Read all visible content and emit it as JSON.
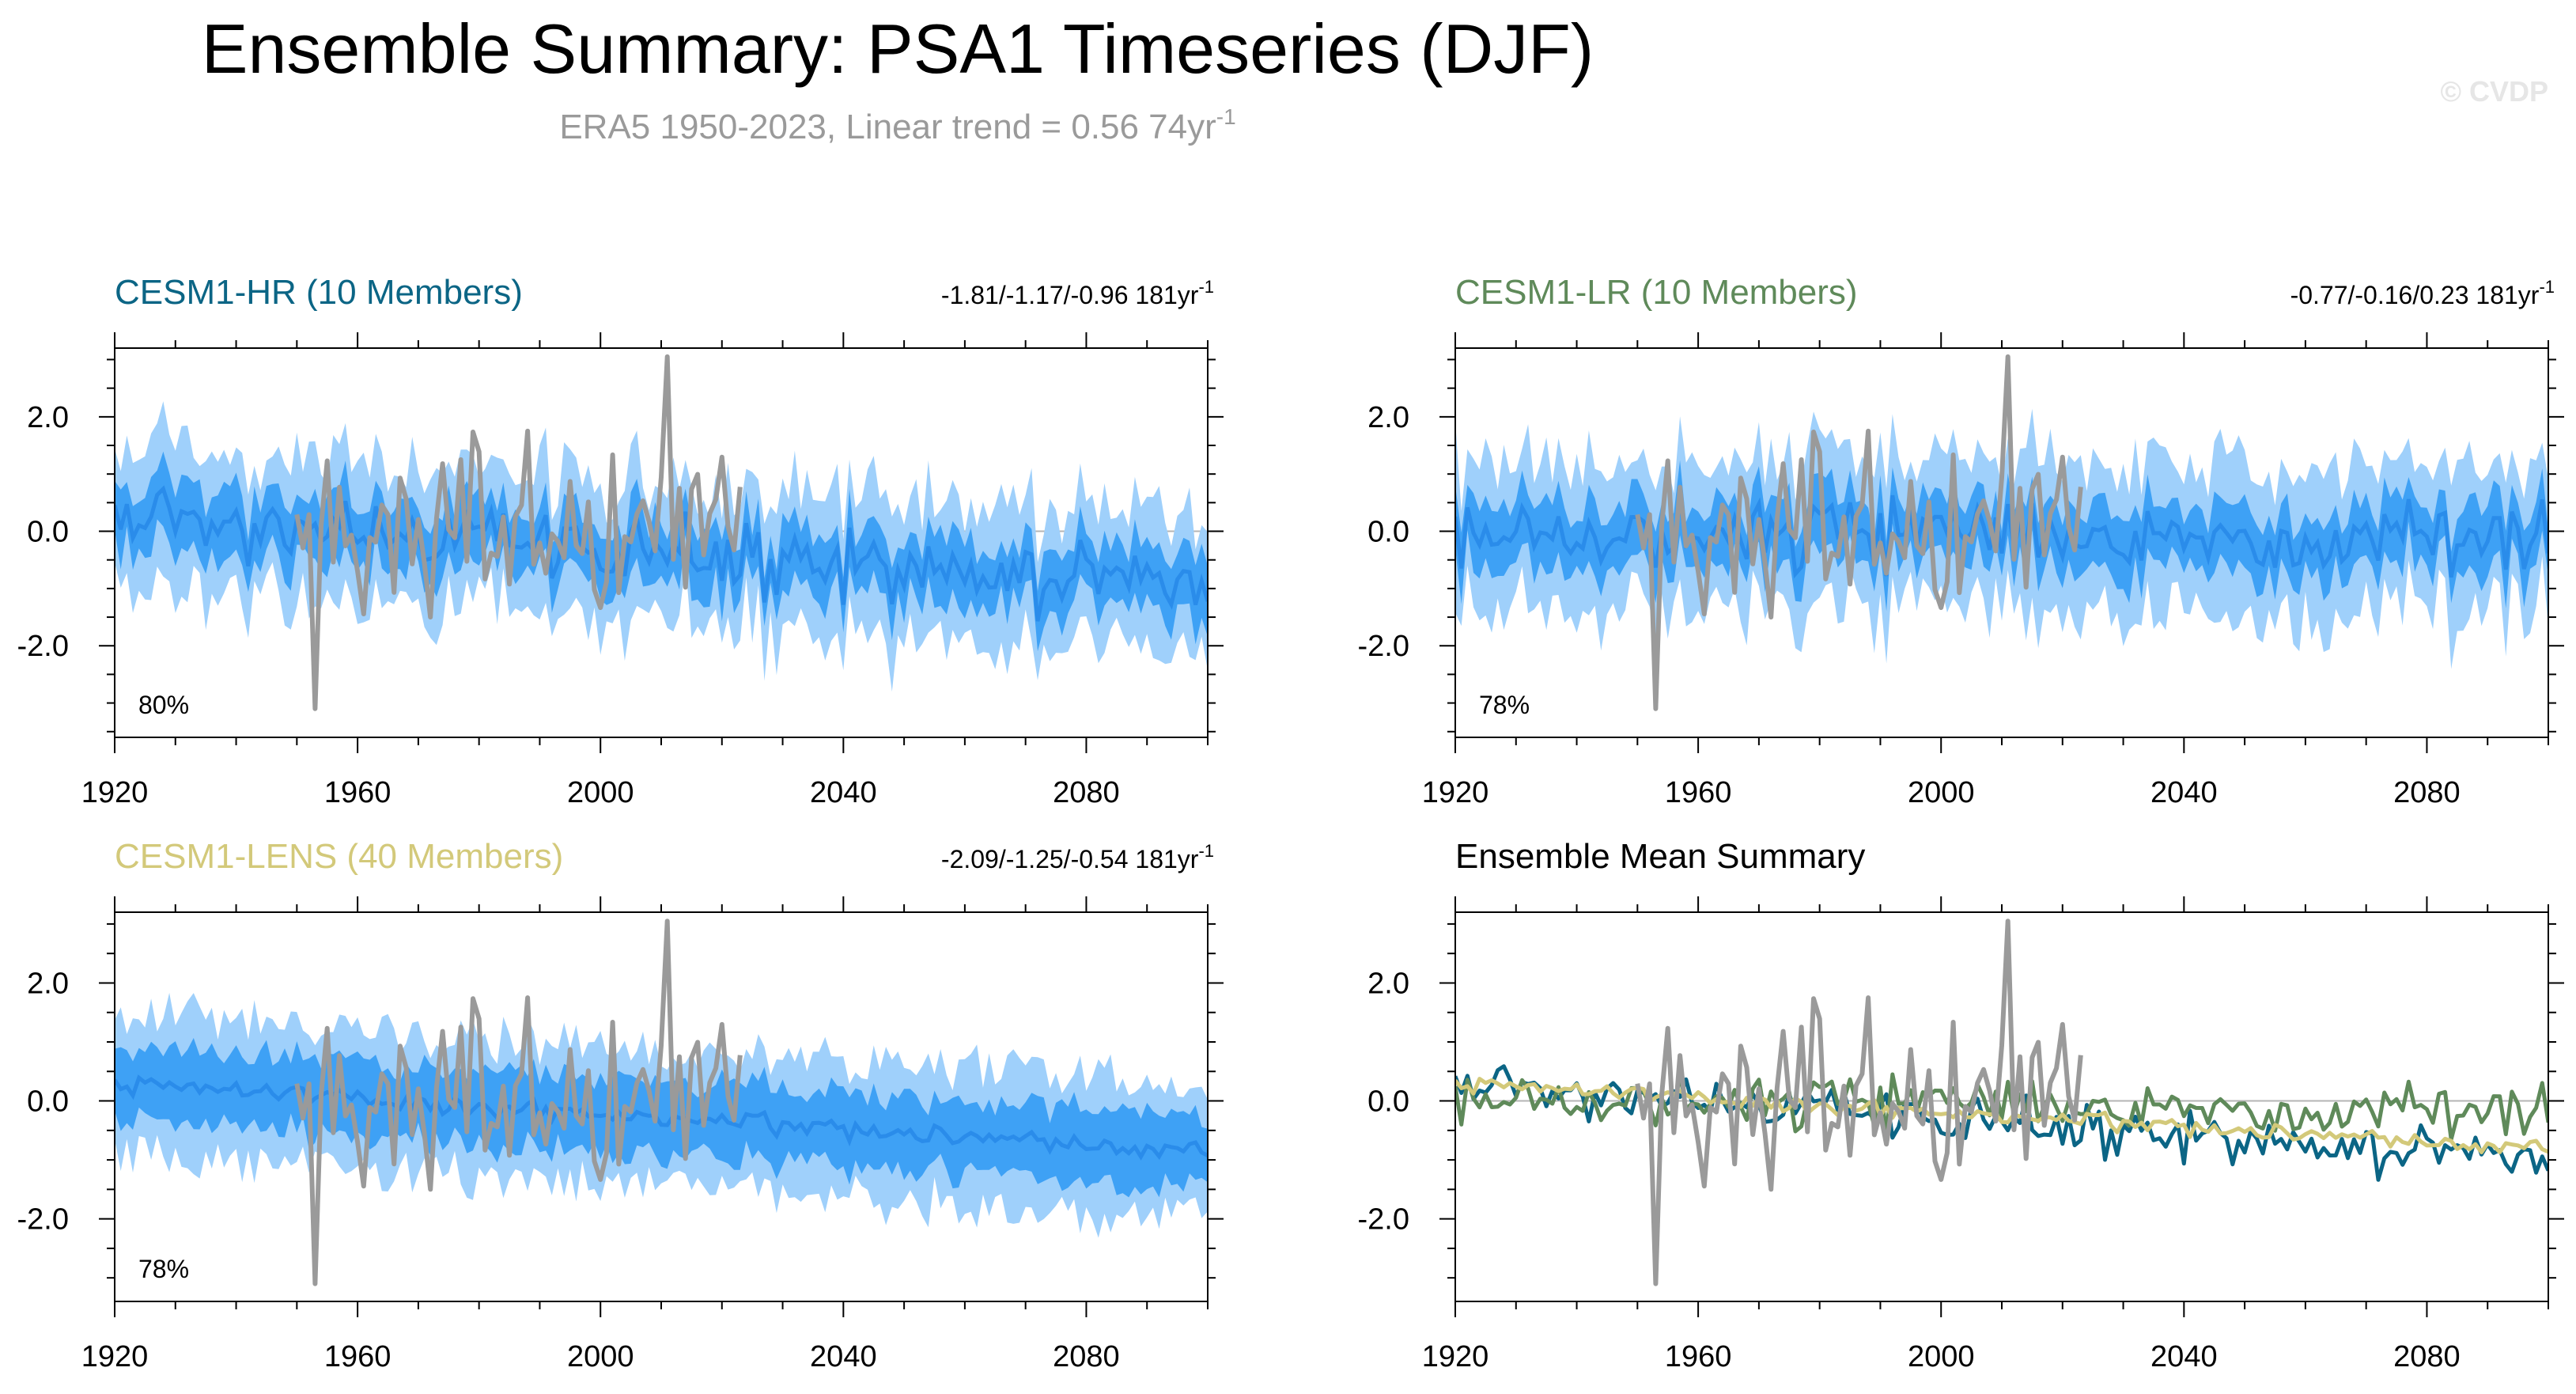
{
  "figure": {
    "title": "Ensemble Summary: PSA1 Timeseries (DJF)",
    "subtitle": "ERA5 1950-2023, Linear trend = 0.56 74yr",
    "subtitle_sup": "-1",
    "watermark": "© CVDP"
  },
  "colors": {
    "hr": "#0b6585",
    "lr": "#5f8a5a",
    "lens": "#d3c97a",
    "obs": "#9a9a9a",
    "band_outer": "#9fd0fb",
    "band_inner": "#3ea1f5",
    "band_mean": "#2a8cea",
    "axis": "#000000",
    "zero": "#b5b5b5"
  },
  "chart_data": [
    {
      "id": "hr",
      "type": "area",
      "title": "CESM1-HR (10 Members)",
      "title_color": "#0b6585",
      "trend": "-1.81/-1.17/-0.96 181yr",
      "trend_sup": "-1",
      "percent": "80%",
      "xlim": [
        1920,
        2100
      ],
      "ylim": [
        -3.6,
        3.2
      ],
      "xticks": [
        "1920",
        "1960",
        "2000",
        "2040",
        "2080"
      ],
      "yticks": [
        "2.0",
        "0.0",
        "-2.0"
      ],
      "ensemble": {
        "start": 1920,
        "end": 2100,
        "trend_start": 0.2,
        "trend_end": -0.95,
        "noise": 0.45,
        "inner": 0.55,
        "outer": 1.15,
        "seed": 11
      },
      "obs": {
        "start": 1950,
        "end": 2023,
        "noise": 0.95,
        "seed": 5
      }
    },
    {
      "id": "lr",
      "type": "area",
      "title": "CESM1-LR (10 Members)",
      "title_color": "#5f8a5a",
      "trend": "-0.77/-0.16/0.23 181yr",
      "trend_sup": "-1",
      "percent": "78%",
      "xlim": [
        1920,
        2100
      ],
      "ylim": [
        -3.6,
        3.2
      ],
      "xticks": [
        "1920",
        "1960",
        "2000",
        "2040",
        "2080"
      ],
      "yticks": [
        "2.0",
        "0.0",
        "-2.0"
      ],
      "ensemble": {
        "start": 1920,
        "end": 2100,
        "trend_start": 0.05,
        "trend_end": -0.15,
        "noise": 0.42,
        "inner": 0.55,
        "outer": 1.25,
        "seed": 23
      },
      "obs": {
        "start": 1950,
        "end": 2023,
        "noise": 0.95,
        "seed": 5
      }
    },
    {
      "id": "lens",
      "type": "area",
      "title": "CESM1-LENS (40 Members)",
      "title_color": "#d3c97a",
      "trend": "-2.09/-1.25/-0.54 181yr",
      "trend_sup": "-1",
      "percent": "78%",
      "xlim": [
        1920,
        2100
      ],
      "ylim": [
        -3.4,
        3.2
      ],
      "xticks": [
        "1920",
        "1960",
        "2000",
        "2040",
        "2080"
      ],
      "yticks": [
        "2.0",
        "0.0",
        "-2.0"
      ],
      "ensemble": {
        "start": 1920,
        "end": 2100,
        "trend_start": 0.3,
        "trend_end": -0.85,
        "noise": 0.12,
        "inner": 0.6,
        "outer": 1.15,
        "seed": 37
      },
      "obs": {
        "start": 1950,
        "end": 2023,
        "noise": 0.95,
        "seed": 5
      }
    },
    {
      "id": "summary",
      "type": "line",
      "title": "Ensemble Mean Summary",
      "title_color": "#000000",
      "xlim": [
        1920,
        2100
      ],
      "ylim": [
        -3.4,
        3.2
      ],
      "xticks": [
        "1920",
        "1960",
        "2000",
        "2040",
        "2080"
      ],
      "yticks": [
        "2.0",
        "0.0",
        "-2.0"
      ],
      "series": [
        {
          "name": "CESM1-HR",
          "color": "#0b6585",
          "start": 1920,
          "end": 2100,
          "trend_start": 0.25,
          "trend_end": -1.0,
          "noise": 0.3,
          "seed": 11
        },
        {
          "name": "CESM1-LR",
          "color": "#5f8a5a",
          "start": 1920,
          "end": 2100,
          "trend_start": 0.1,
          "trend_end": -0.2,
          "noise": 0.3,
          "seed": 23
        },
        {
          "name": "CESM1-LENS",
          "color": "#d3c97a",
          "start": 1920,
          "end": 2100,
          "trend_start": 0.3,
          "trend_end": -0.8,
          "noise": 0.1,
          "seed": 37
        }
      ],
      "obs": {
        "start": 1950,
        "end": 2023,
        "noise": 0.95,
        "seed": 5
      }
    }
  ]
}
